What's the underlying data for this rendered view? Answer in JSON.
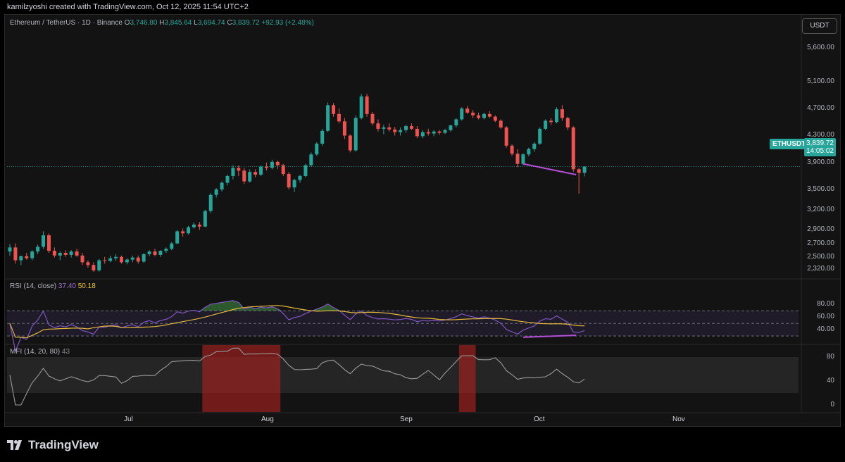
{
  "header": {
    "credit": "kamilzyoshi created with TradingView.com, Oct 12, 2025 11:54 UTC+2"
  },
  "legend": {
    "symbol": "Ethereum / TetherUS · 1D · Binance",
    "o_label": "O",
    "o": "3,746.80",
    "h_label": "H",
    "h": "3,845.64",
    "l_label": "L",
    "l": "3,694.74",
    "c_label": "C",
    "c": "3,839.72",
    "change": "+92.93 (+2.48%)"
  },
  "currency_button": "USDT",
  "price_axis": [
    "5,600.00",
    "5,100.00",
    "4,700.00",
    "4,300.00",
    "3,900.00",
    "3,500.00",
    "3,200.00",
    "2,900.00",
    "2,700.00",
    "2,500.00",
    "2,320.00"
  ],
  "last_price": {
    "ticker": "ETHUSDT",
    "price": "3,839.72",
    "countdown": "14:05:02"
  },
  "rsi": {
    "label": "RSI (14, close)",
    "value": "37.40",
    "ma": "50.18",
    "axis": [
      "80.00",
      "60.00",
      "40.00"
    ]
  },
  "mfi": {
    "label": "MFI (14, 20, 80)",
    "value": "43",
    "axis": [
      "80",
      "40",
      "0"
    ]
  },
  "time_axis": [
    "Jul",
    "Aug",
    "Sep",
    "Oct",
    "Nov"
  ],
  "brand": "TradingView",
  "colors": {
    "up": "#26a69a",
    "down": "#ef5350",
    "divergence": "#b44fd8",
    "rsi": "#7e57c2",
    "rsi_ma": "#e4b83a",
    "mfi": "#9a9a9a"
  },
  "chart_data": {
    "type": "candlestick",
    "ohlc_sample": [
      [
        2580,
        2690,
        2520,
        2640
      ],
      [
        2640,
        2700,
        2400,
        2450
      ],
      [
        2450,
        2520,
        2380,
        2510
      ],
      [
        2510,
        2560,
        2460,
        2480
      ],
      [
        2480,
        2600,
        2450,
        2580
      ],
      [
        2580,
        2680,
        2540,
        2650
      ],
      [
        2650,
        2880,
        2620,
        2820
      ],
      [
        2820,
        2850,
        2560,
        2590
      ],
      [
        2590,
        2640,
        2490,
        2520
      ],
      [
        2520,
        2580,
        2450,
        2560
      ],
      [
        2560,
        2600,
        2500,
        2530
      ],
      [
        2530,
        2600,
        2490,
        2580
      ],
      [
        2580,
        2620,
        2500,
        2520
      ],
      [
        2520,
        2560,
        2380,
        2420
      ],
      [
        2420,
        2450,
        2340,
        2380
      ],
      [
        2380,
        2420,
        2280,
        2300
      ],
      [
        2300,
        2470,
        2280,
        2450
      ],
      [
        2450,
        2500,
        2400,
        2440
      ],
      [
        2440,
        2520,
        2420,
        2480
      ],
      [
        2480,
        2540,
        2440,
        2500
      ],
      [
        2500,
        2520,
        2400,
        2420
      ],
      [
        2420,
        2480,
        2390,
        2460
      ],
      [
        2460,
        2520,
        2420,
        2490
      ],
      [
        2490,
        2520,
        2400,
        2430
      ],
      [
        2430,
        2560,
        2410,
        2540
      ],
      [
        2540,
        2600,
        2510,
        2580
      ],
      [
        2580,
        2620,
        2510,
        2530
      ],
      [
        2530,
        2600,
        2500,
        2590
      ],
      [
        2590,
        2640,
        2560,
        2620
      ],
      [
        2620,
        2720,
        2600,
        2700
      ],
      [
        2700,
        2900,
        2690,
        2880
      ],
      [
        2880,
        2920,
        2800,
        2850
      ],
      [
        2850,
        2960,
        2830,
        2940
      ],
      [
        2940,
        3010,
        2920,
        2980
      ],
      [
        2980,
        3020,
        2900,
        2950
      ],
      [
        2950,
        3200,
        2940,
        3180
      ],
      [
        3180,
        3450,
        3150,
        3420
      ],
      [
        3420,
        3520,
        3380,
        3500
      ],
      [
        3500,
        3620,
        3470,
        3600
      ],
      [
        3600,
        3720,
        3560,
        3700
      ],
      [
        3700,
        3860,
        3650,
        3820
      ],
      [
        3820,
        3860,
        3700,
        3780
      ],
      [
        3780,
        3820,
        3580,
        3620
      ],
      [
        3620,
        3800,
        3600,
        3760
      ],
      [
        3760,
        3800,
        3680,
        3720
      ],
      [
        3720,
        3860,
        3700,
        3840
      ],
      [
        3840,
        3900,
        3780,
        3820
      ],
      [
        3820,
        3940,
        3800,
        3910
      ],
      [
        3910,
        3930,
        3800,
        3860
      ],
      [
        3860,
        3880,
        3700,
        3730
      ],
      [
        3730,
        3760,
        3500,
        3530
      ],
      [
        3530,
        3660,
        3460,
        3640
      ],
      [
        3640,
        3720,
        3600,
        3700
      ],
      [
        3700,
        3880,
        3680,
        3860
      ],
      [
        3860,
        4050,
        3840,
        4020
      ],
      [
        4020,
        4200,
        4000,
        4180
      ],
      [
        4180,
        4400,
        4150,
        4370
      ],
      [
        4370,
        4790,
        4350,
        4750
      ],
      [
        4750,
        4780,
        4580,
        4620
      ],
      [
        4620,
        4700,
        4480,
        4510
      ],
      [
        4510,
        4560,
        4250,
        4300
      ],
      [
        4300,
        4320,
        4050,
        4080
      ],
      [
        4080,
        4600,
        4060,
        4560
      ],
      [
        4560,
        4920,
        4540,
        4880
      ],
      [
        4880,
        4920,
        4580,
        4620
      ],
      [
        4620,
        4650,
        4450,
        4480
      ],
      [
        4480,
        4540,
        4360,
        4400
      ],
      [
        4400,
        4460,
        4320,
        4420
      ],
      [
        4420,
        4480,
        4360,
        4390
      ],
      [
        4390,
        4430,
        4300,
        4350
      ],
      [
        4350,
        4420,
        4300,
        4380
      ],
      [
        4380,
        4460,
        4340,
        4440
      ],
      [
        4440,
        4480,
        4380,
        4400
      ],
      [
        4400,
        4440,
        4260,
        4290
      ],
      [
        4290,
        4380,
        4260,
        4350
      ],
      [
        4350,
        4400,
        4300,
        4330
      ],
      [
        4330,
        4380,
        4290,
        4360
      ],
      [
        4360,
        4380,
        4310,
        4340
      ],
      [
        4340,
        4400,
        4320,
        4380
      ],
      [
        4380,
        4460,
        4360,
        4450
      ],
      [
        4450,
        4560,
        4420,
        4540
      ],
      [
        4540,
        4720,
        4520,
        4700
      ],
      [
        4700,
        4740,
        4620,
        4640
      ],
      [
        4640,
        4680,
        4560,
        4600
      ],
      [
        4600,
        4640,
        4540,
        4560
      ],
      [
        4560,
        4640,
        4540,
        4620
      ],
      [
        4620,
        4660,
        4560,
        4580
      ],
      [
        4580,
        4600,
        4500,
        4520
      ],
      [
        4520,
        4540,
        4400,
        4420
      ],
      [
        4420,
        4440,
        4120,
        4150
      ],
      [
        4150,
        4170,
        4000,
        4030
      ],
      [
        4030,
        4100,
        3830,
        3880
      ],
      [
        3880,
        4040,
        3860,
        4020
      ],
      [
        4020,
        4120,
        3990,
        4100
      ],
      [
        4100,
        4200,
        4060,
        4180
      ],
      [
        4180,
        4420,
        4160,
        4400
      ],
      [
        4400,
        4540,
        4380,
        4520
      ],
      [
        4520,
        4560,
        4460,
        4500
      ],
      [
        4500,
        4720,
        4480,
        4690
      ],
      [
        4690,
        4750,
        4520,
        4560
      ],
      [
        4560,
        4580,
        4380,
        4420
      ],
      [
        4420,
        4440,
        3760,
        3800
      ],
      [
        3800,
        3820,
        3440,
        3746.8
      ],
      [
        3746.8,
        3845.64,
        3694.74,
        3839.72
      ]
    ],
    "rsi_period": 14,
    "mfi_period": 14,
    "divergence": "bullish (price lower low, RSI lower low)"
  }
}
